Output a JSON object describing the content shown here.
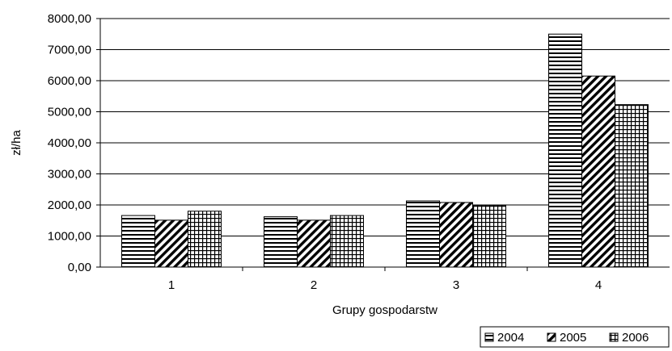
{
  "chart_data": {
    "type": "bar",
    "title": "",
    "xlabel": "Grupy gospodarstw",
    "ylabel": "zł/ha",
    "ylim": [
      0,
      8000
    ],
    "ytick_step": 1000,
    "ytick_labels": [
      "0,00",
      "1000,00",
      "2000,00",
      "3000,00",
      "4000,00",
      "5000,00",
      "6000,00",
      "7000,00",
      "8000,00"
    ],
    "categories": [
      "1",
      "2",
      "3",
      "4"
    ],
    "series": [
      {
        "name": "2004",
        "pattern": "horizontal-lines",
        "values": [
          1660,
          1620,
          2130,
          7500
        ]
      },
      {
        "name": "2005",
        "pattern": "diagonal-lines",
        "values": [
          1510,
          1510,
          2080,
          6150
        ]
      },
      {
        "name": "2006",
        "pattern": "grid",
        "values": [
          1800,
          1660,
          1990,
          5230
        ]
      }
    ],
    "grid": {
      "horizontal": true,
      "vertical": false
    },
    "legend_position": "bottom-right"
  }
}
